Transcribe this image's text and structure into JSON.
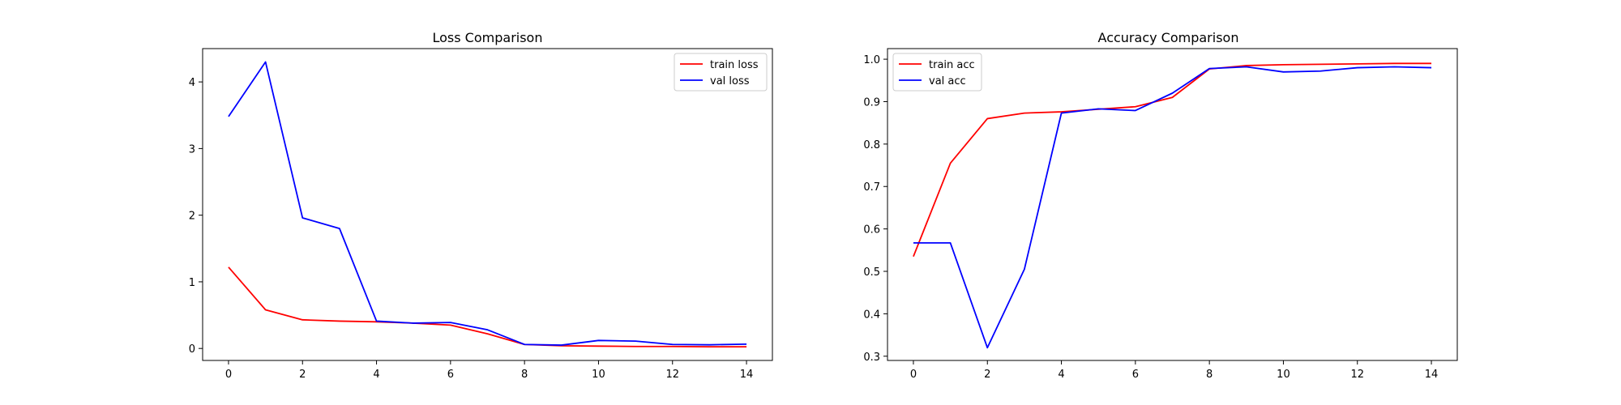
{
  "colors": {
    "train": "#ff0000",
    "val": "#0000ff",
    "axes": "#000000",
    "background": "#ffffff"
  },
  "chart_data": [
    {
      "type": "line",
      "title": "Loss Comparison",
      "xlabel": "",
      "ylabel": "",
      "x": [
        0,
        1,
        2,
        3,
        4,
        5,
        6,
        7,
        8,
        9,
        10,
        11,
        12,
        13,
        14
      ],
      "xlim": [
        -0.7,
        14.7
      ],
      "ylim": [
        -0.18,
        4.5
      ],
      "xticks": [
        0,
        2,
        4,
        6,
        8,
        10,
        12,
        14
      ],
      "yticks": [
        0,
        1,
        2,
        3,
        4
      ],
      "grid": false,
      "legend_position": "top-right",
      "series": [
        {
          "name": "train loss",
          "color": "#ff0000",
          "values": [
            1.22,
            0.58,
            0.43,
            0.41,
            0.4,
            0.38,
            0.35,
            0.22,
            0.06,
            0.04,
            0.035,
            0.03,
            0.03,
            0.025,
            0.025
          ]
        },
        {
          "name": "val loss",
          "color": "#0000ff",
          "values": [
            3.48,
            4.3,
            1.96,
            1.8,
            0.41,
            0.38,
            0.39,
            0.28,
            0.06,
            0.05,
            0.12,
            0.11,
            0.06,
            0.055,
            0.065
          ]
        }
      ]
    },
    {
      "type": "line",
      "title": "Accuracy Comparison",
      "xlabel": "",
      "ylabel": "",
      "x": [
        0,
        1,
        2,
        3,
        4,
        5,
        6,
        7,
        8,
        9,
        10,
        11,
        12,
        13,
        14
      ],
      "xlim": [
        -0.7,
        14.7
      ],
      "ylim": [
        0.29,
        1.025
      ],
      "xticks": [
        0,
        2,
        4,
        6,
        8,
        10,
        12,
        14
      ],
      "yticks": [
        0.3,
        0.4,
        0.5,
        0.6,
        0.7,
        0.8,
        0.9,
        1.0
      ],
      "ytick_labels": [
        "0.3",
        "0.4",
        "0.5",
        "0.6",
        "0.7",
        "0.8",
        "0.9",
        "1.0"
      ],
      "grid": false,
      "legend_position": "top-left",
      "series": [
        {
          "name": "train acc",
          "color": "#ff0000",
          "values": [
            0.535,
            0.755,
            0.86,
            0.873,
            0.876,
            0.882,
            0.888,
            0.91,
            0.977,
            0.985,
            0.987,
            0.988,
            0.989,
            0.99,
            0.99
          ]
        },
        {
          "name": "val acc",
          "color": "#0000ff",
          "values": [
            0.567,
            0.567,
            0.32,
            0.505,
            0.873,
            0.883,
            0.879,
            0.92,
            0.978,
            0.982,
            0.97,
            0.972,
            0.98,
            0.982,
            0.98
          ]
        }
      ]
    }
  ]
}
